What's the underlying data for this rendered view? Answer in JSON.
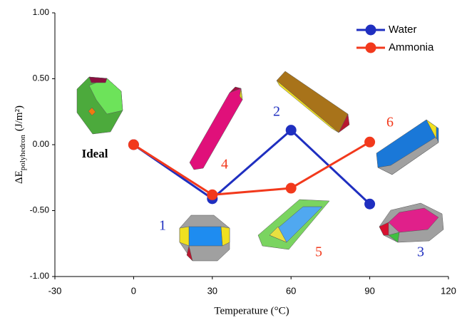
{
  "chart_data": {
    "type": "line",
    "y_label": "ΔE",
    "y_label_subscript": "polyhedron",
    "y_label_unit": "(J/m²)",
    "x_label": "Temperature (°C)",
    "x": [
      0,
      30,
      60,
      90
    ],
    "series": [
      {
        "name": "Water",
        "color": "#1f2fc0",
        "values": [
          0,
          -0.41,
          0.11,
          -0.45
        ]
      },
      {
        "name": "Ammonia",
        "color": "#f2391c",
        "values": [
          0,
          -0.38,
          -0.33,
          0.02
        ]
      }
    ],
    "xlim": [
      -30,
      120
    ],
    "xticks": [
      -30,
      0,
      30,
      60,
      90,
      120
    ],
    "ylim": [
      -1,
      1
    ],
    "yticks": [
      {
        "value": -1,
        "label": "-1.00"
      },
      {
        "value": -0.5,
        "label": "-0.50"
      },
      {
        "value": 0,
        "label": "0.00"
      },
      {
        "value": 0.5,
        "label": "0.50"
      },
      {
        "value": 1,
        "label": "1.00"
      }
    ],
    "legend": "top-right",
    "annotations": [
      {
        "text": "Ideal",
        "color": "#000000"
      },
      {
        "text": "1",
        "color": "#1f2fc0"
      },
      {
        "text": "2",
        "color": "#1f2fc0"
      },
      {
        "text": "3",
        "color": "#1f2fc0"
      },
      {
        "text": "4",
        "color": "#f2391c"
      },
      {
        "text": "5",
        "color": "#f2391c"
      },
      {
        "text": "6",
        "color": "#f2391c"
      }
    ]
  }
}
